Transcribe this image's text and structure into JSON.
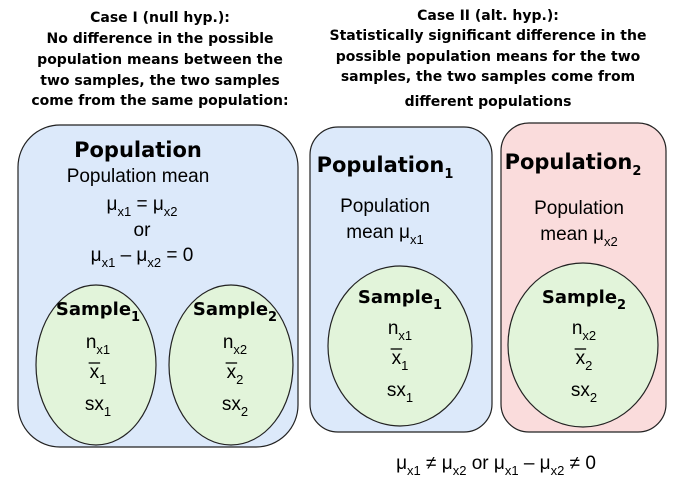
{
  "case1": {
    "heading": [
      "Case I (null hyp.):",
      "No difference in the possible",
      "population means between the",
      "two samples, the two samples",
      "come from the same population:"
    ],
    "population": {
      "title": [
        "Population"
      ],
      "mean_label": [
        "Population mean"
      ],
      "equation": [
        "μ",
        "x1",
        " = μ",
        "x2"
      ],
      "or": [
        "or"
      ],
      "difference": [
        "μ",
        "x1",
        " –    μ",
        "x2",
        " = 0"
      ]
    },
    "samples": [
      {
        "title": [
          "Sample",
          "1"
        ],
        "n": [
          "n",
          "x1"
        ],
        "mean": [
          "x",
          "1"
        ],
        "sd": [
          "sx",
          "1"
        ]
      },
      {
        "title": [
          "Sample",
          "2"
        ],
        "n": [
          "n",
          "x2"
        ],
        "mean": [
          "x",
          "2"
        ],
        "sd": [
          "sx",
          "2"
        ]
      }
    ]
  },
  "case2": {
    "heading": [
      "Case II (alt. hyp.):",
      "Statistically significant difference in the",
      "possible population means for the two",
      "samples, the two samples come from",
      "different populations"
    ],
    "groups": [
      {
        "title": [
          "Population",
          "1"
        ],
        "mean_label": [
          "Population"
        ],
        "mean_symbol": [
          "mean μ",
          "x1"
        ],
        "sample": {
          "title": [
            "Sample",
            "1"
          ],
          "n": [
            "n",
            "x1"
          ],
          "mean": [
            "x",
            "1"
          ],
          "sd": [
            "sx",
            "1"
          ]
        }
      },
      {
        "title": [
          "Population",
          "2"
        ],
        "mean_label": [
          "Population"
        ],
        "mean_symbol": [
          "mean μ",
          "x2"
        ],
        "sample": {
          "title": [
            "Sample",
            "2"
          ],
          "n": [
            "n",
            "x2"
          ],
          "mean": [
            "x",
            "2"
          ],
          "sd": [
            "sx",
            "2"
          ]
        }
      }
    ],
    "conclusion": [
      "μ",
      "x1",
      " ≠ μ",
      "x2",
      " or  μ",
      "x1",
      " – μ",
      "x2",
      " ≠ 0"
    ]
  }
}
